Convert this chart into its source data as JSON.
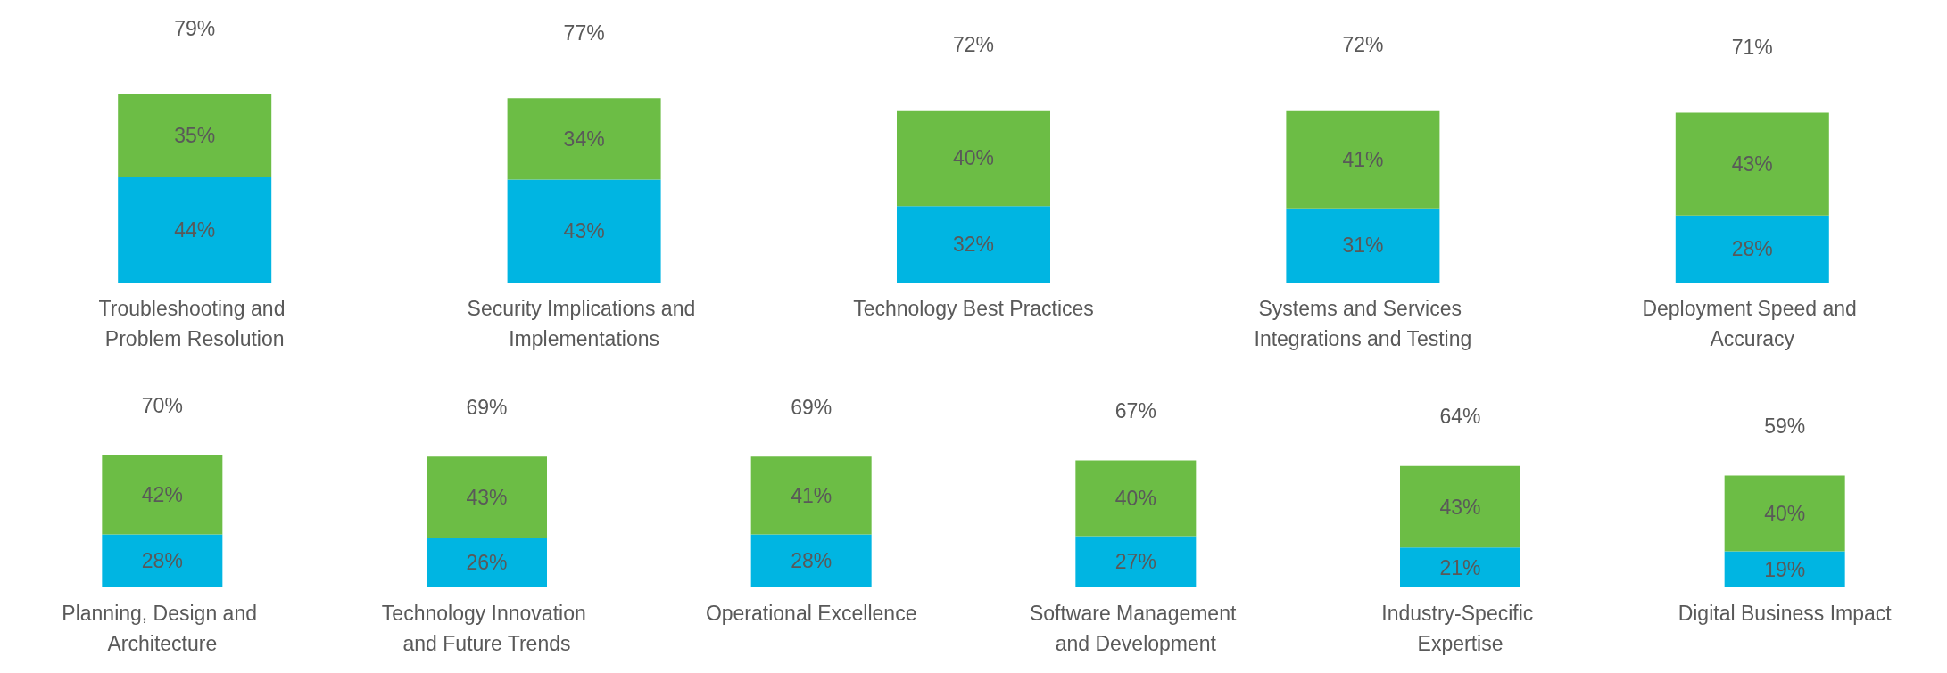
{
  "chart_data": [
    {
      "type": "bar",
      "stacked": true,
      "grid": false,
      "categories": [
        "Troubleshooting and Problem Resolution",
        "Security Implications and Implementations",
        "Technology Best Practices",
        "Systems and Services Integrations and Testing",
        "Deployment Speed and Accuracy"
      ],
      "series": [
        {
          "color": "#00b5e2",
          "values": [
            44,
            43,
            32,
            31,
            28
          ],
          "value_labels": [
            "44%",
            "43%",
            "32%",
            "31%",
            "28%"
          ]
        },
        {
          "color": "#6cbd45",
          "values": [
            35,
            34,
            40,
            41,
            43
          ],
          "value_labels": [
            "35%",
            "34%",
            "40%",
            "41%",
            "43%"
          ]
        }
      ],
      "totals": [
        "79%",
        "77%",
        "72%",
        "72%",
        "71%"
      ]
    },
    {
      "type": "bar",
      "stacked": true,
      "grid": false,
      "categories": [
        "Planning, Design and Architecture",
        "Technology Innovation and Future Trends",
        "Operational Excellence",
        "Software Management and Development",
        "Industry-Specific Expertise",
        "Digital Business Impact"
      ],
      "series": [
        {
          "color": "#00b5e2",
          "values": [
            28,
            26,
            28,
            27,
            21,
            19
          ],
          "value_labels": [
            "28%",
            "26%",
            "28%",
            "27%",
            "21%",
            "19%"
          ]
        },
        {
          "color": "#6cbd45",
          "values": [
            42,
            43,
            41,
            40,
            43,
            40
          ],
          "value_labels": [
            "42%",
            "43%",
            "41%",
            "40%",
            "43%",
            "40%"
          ]
        }
      ],
      "totals": [
        "70%",
        "69%",
        "69%",
        "67%",
        "64%",
        "59%"
      ]
    }
  ]
}
